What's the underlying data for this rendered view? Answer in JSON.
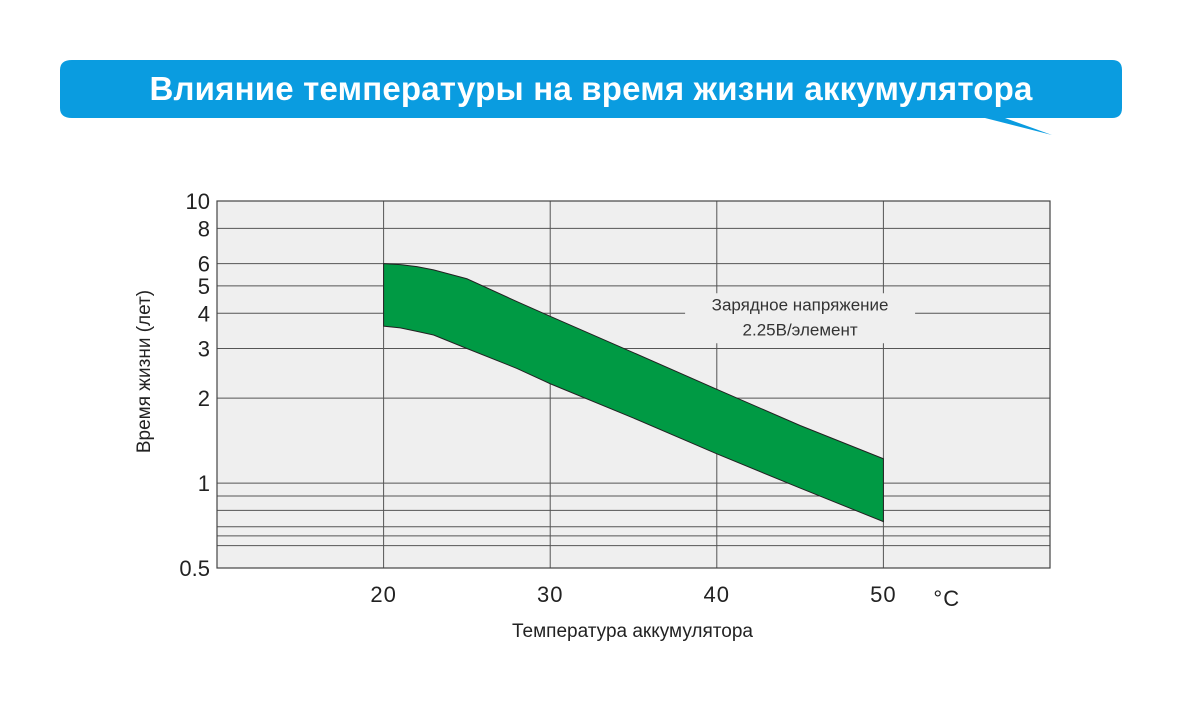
{
  "banner": {
    "title": "Влияние температуры на время жизни аккумулятора",
    "color": "#0a9ce0"
  },
  "chart_data": {
    "type": "area",
    "title": "Влияние температуры на время жизни аккумулятора",
    "xlabel": "Температура аккумулятора",
    "x_unit": "°C",
    "ylabel": "Время жизни (лет)",
    "y_scale": "log",
    "xlim": [
      10,
      60
    ],
    "ylim": [
      0.5,
      10
    ],
    "x_ticks": [
      20,
      30,
      40,
      50
    ],
    "y_ticks": [
      0.5,
      1,
      2,
      3,
      4,
      5,
      6,
      8,
      10
    ],
    "y_tick_labels": [
      "0.5",
      "1",
      "2",
      "3",
      "4",
      "5",
      "6",
      "8",
      "10"
    ],
    "y_gridlines": [
      0.6,
      0.65,
      0.7,
      0.8,
      0.9,
      1,
      2,
      3,
      4,
      5,
      6,
      8,
      10
    ],
    "grid": true,
    "band_color": "#009a44",
    "series": [
      {
        "x": [
          20,
          21,
          22,
          23,
          25,
          28,
          30,
          35,
          40,
          45,
          50
        ],
        "values": [
          6.0,
          5.95,
          5.85,
          5.7,
          5.3,
          4.4,
          3.9,
          2.9,
          2.15,
          1.6,
          1.22
        ]
      },
      {
        "x": [
          20,
          21,
          22,
          23,
          25,
          28,
          30,
          35,
          40,
          45,
          50
        ],
        "values": [
          3.6,
          3.55,
          3.45,
          3.35,
          3.0,
          2.55,
          2.25,
          1.7,
          1.27,
          0.96,
          0.73
        ]
      }
    ],
    "annotation": {
      "lines": [
        "Зарядное напряжение",
        "2.25В/элемент"
      ],
      "x": 45,
      "y": 4
    }
  }
}
